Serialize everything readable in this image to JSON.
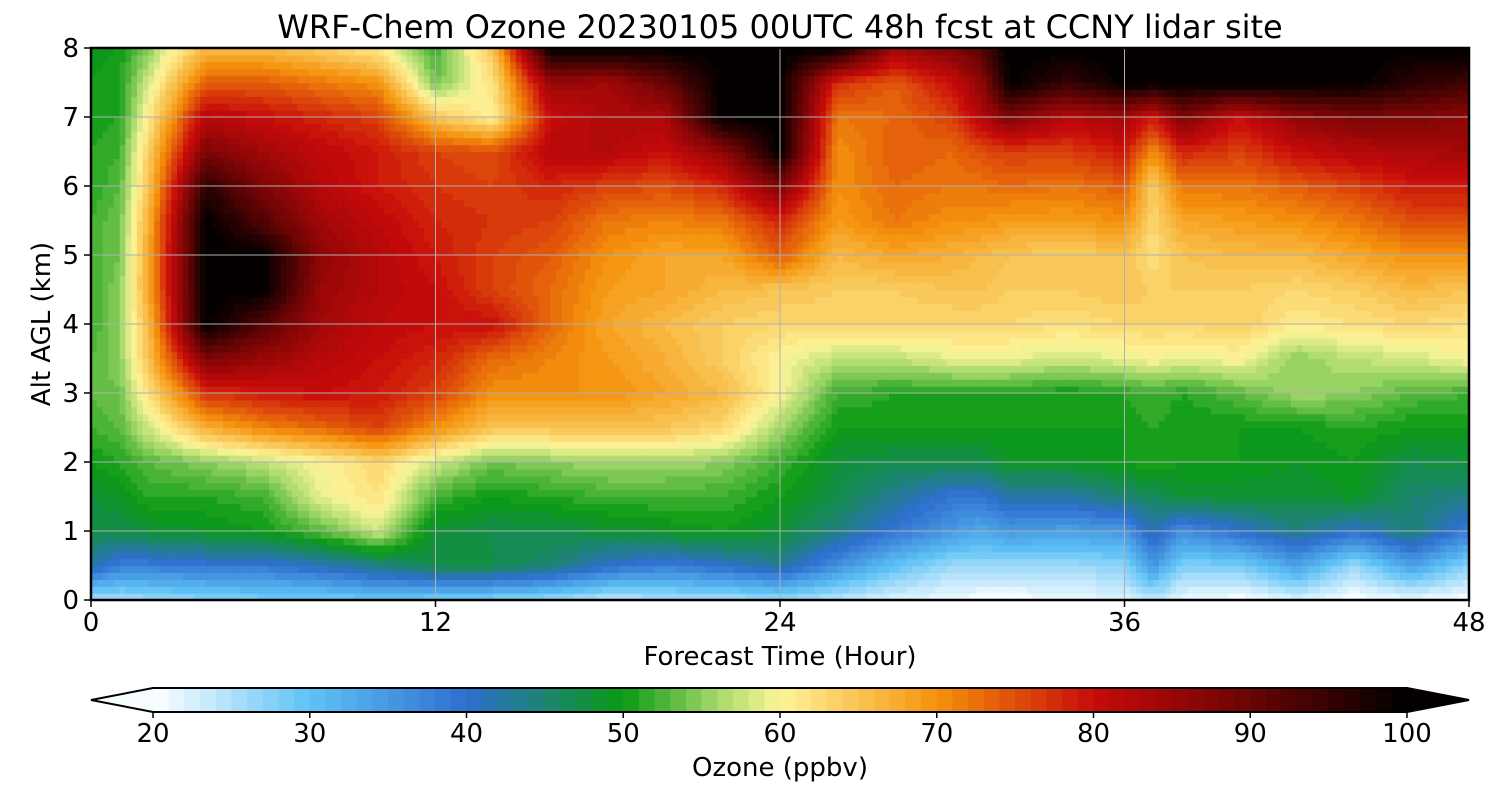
{
  "chart_data": {
    "type": "heatmap",
    "title": "WRF-Chem Ozone  20230105 00UTC 48h fcst at CCNY lidar site",
    "xlabel": "Forecast Time (Hour)",
    "ylabel": "Alt AGL (km)",
    "xlim": [
      0,
      48
    ],
    "ylim": [
      0,
      8
    ],
    "x_ticks": [
      0,
      12,
      24,
      36,
      48
    ],
    "y_ticks": [
      0,
      1,
      2,
      3,
      4,
      5,
      6,
      7,
      8
    ],
    "grid": true,
    "colorbar": {
      "label": "Ozone  (ppbv)",
      "min": 20,
      "max": 100,
      "ticks": [
        20,
        30,
        40,
        50,
        60,
        70,
        80,
        90,
        100
      ],
      "extend": "both",
      "colormap_stops": [
        {
          "value": 20,
          "color": "#ffffff"
        },
        {
          "value": 30,
          "color": "#5ec2f5"
        },
        {
          "value": 40,
          "color": "#2f6fcf"
        },
        {
          "value": 50,
          "color": "#0a9a14"
        },
        {
          "value": 56,
          "color": "#a5d86a"
        },
        {
          "value": 60,
          "color": "#fdf59a"
        },
        {
          "value": 70,
          "color": "#f5920c"
        },
        {
          "value": 80,
          "color": "#c80a0a"
        },
        {
          "value": 90,
          "color": "#6a0404"
        },
        {
          "value": 100,
          "color": "#000000"
        }
      ]
    },
    "z_grid_hours": [
      0,
      1,
      2,
      4,
      6,
      8,
      10,
      12,
      14,
      16,
      18,
      20,
      22,
      24,
      26,
      28,
      30,
      31,
      32,
      34,
      36,
      37,
      38,
      40,
      42,
      44,
      46,
      48
    ],
    "z_grid_alt_km": [
      0,
      0.5,
      1,
      1.5,
      2,
      2.5,
      3,
      3.5,
      4,
      4.5,
      5,
      5.5,
      6,
      6.5,
      7,
      7.5,
      8
    ],
    "z_values_ppbv": [
      [
        25,
        25,
        26,
        27,
        28,
        28,
        29,
        28,
        27,
        26,
        24,
        25,
        25,
        26,
        24,
        22,
        21,
        20,
        20,
        21,
        22,
        24,
        21,
        20,
        22,
        20,
        21,
        20
      ],
      [
        42,
        38,
        38,
        39,
        39,
        41,
        44,
        47,
        47,
        45,
        40,
        38,
        40,
        43,
        36,
        30,
        26,
        26,
        26,
        26,
        27,
        35,
        28,
        28,
        34,
        26,
        34,
        27
      ],
      [
        47,
        47,
        48,
        49,
        50,
        53,
        58,
        48,
        47,
        47,
        48,
        49,
        50,
        48,
        44,
        39,
        35,
        33,
        35,
        34,
        35,
        42,
        36,
        40,
        44,
        40,
        45,
        38
      ],
      [
        48,
        49,
        51,
        51,
        52,
        59,
        62,
        52,
        50,
        51,
        52,
        52,
        52,
        50,
        47,
        43,
        39,
        39,
        42,
        42,
        45,
        46,
        48,
        48,
        48,
        49,
        45,
        44
      ],
      [
        50,
        51,
        53,
        55,
        57,
        60,
        63,
        58,
        54,
        55,
        56,
        56,
        55,
        52,
        48,
        47,
        47,
        47,
        49,
        49,
        50,
        51,
        50,
        50,
        49,
        50,
        47,
        48
      ],
      [
        52,
        53,
        58,
        67,
        71,
        73,
        76,
        70,
        65,
        65,
        65,
        65,
        63,
        56,
        50,
        50,
        50,
        50,
        50,
        50,
        50,
        51,
        50,
        50,
        50,
        51,
        50,
        50
      ],
      [
        53,
        54,
        62,
        77,
        79,
        80,
        79,
        76,
        70,
        70,
        70,
        68,
        66,
        60,
        52,
        51,
        51,
        51,
        51,
        50,
        51,
        52,
        51,
        53,
        56,
        55,
        53,
        52
      ],
      [
        53,
        55,
        65,
        88,
        85,
        82,
        80,
        78,
        73,
        71,
        69,
        67,
        64,
        60,
        57,
        57,
        59,
        59,
        59,
        58,
        59,
        60,
        59,
        60,
        55,
        57,
        58,
        60
      ],
      [
        52,
        55,
        66,
        100,
        92,
        84,
        81,
        80,
        80,
        73,
        68,
        66,
        64,
        63,
        63,
        63,
        63,
        63,
        63,
        62,
        63,
        63,
        63,
        64,
        61,
        62,
        63,
        62
      ],
      [
        52,
        55,
        68,
        100,
        100,
        85,
        82,
        80,
        76,
        73,
        69,
        68,
        66,
        65,
        64,
        64,
        65,
        65,
        64,
        64,
        65,
        64,
        64,
        64,
        63,
        64,
        66,
        65
      ],
      [
        52,
        54,
        68,
        100,
        100,
        86,
        82,
        79,
        76,
        74,
        70,
        68,
        68,
        74,
        66,
        68,
        67,
        66,
        65,
        64,
        65,
        62,
        65,
        66,
        66,
        68,
        70,
        70
      ],
      [
        52,
        54,
        67,
        100,
        92,
        84,
        81,
        78,
        77,
        76,
        72,
        71,
        72,
        78,
        69,
        72,
        70,
        70,
        69,
        69,
        70,
        63,
        68,
        69,
        70,
        72,
        75,
        75
      ],
      [
        51,
        53,
        65,
        96,
        88,
        82,
        79,
        77,
        76,
        78,
        76,
        75,
        78,
        88,
        70,
        73,
        72,
        72,
        73,
        72,
        74,
        64,
        72,
        72,
        74,
        76,
        79,
        79
      ],
      [
        51,
        52,
        64,
        88,
        84,
        81,
        79,
        76,
        75,
        82,
        82,
        80,
        86,
        100,
        70,
        74,
        73,
        75,
        76,
        76,
        79,
        70,
        78,
        76,
        80,
        82,
        83,
        84
      ],
      [
        50,
        51,
        61,
        82,
        80,
        78,
        76,
        65,
        60,
        80,
        83,
        83,
        100,
        100,
        72,
        73,
        76,
        82,
        88,
        82,
        84,
        79,
        88,
        80,
        86,
        88,
        88,
        86
      ],
      [
        50,
        51,
        58,
        74,
        74,
        72,
        70,
        54,
        62,
        85,
        84,
        90,
        100,
        100,
        77,
        74,
        80,
        86,
        100,
        95,
        100,
        100,
        100,
        100,
        100,
        100,
        96,
        94
      ],
      [
        49,
        50,
        55,
        66,
        66,
        64,
        61,
        52,
        65,
        100,
        100,
        100,
        100,
        100,
        100,
        84,
        88,
        92,
        100,
        100,
        100,
        100,
        100,
        100,
        100,
        100,
        100,
        100
      ]
    ]
  }
}
